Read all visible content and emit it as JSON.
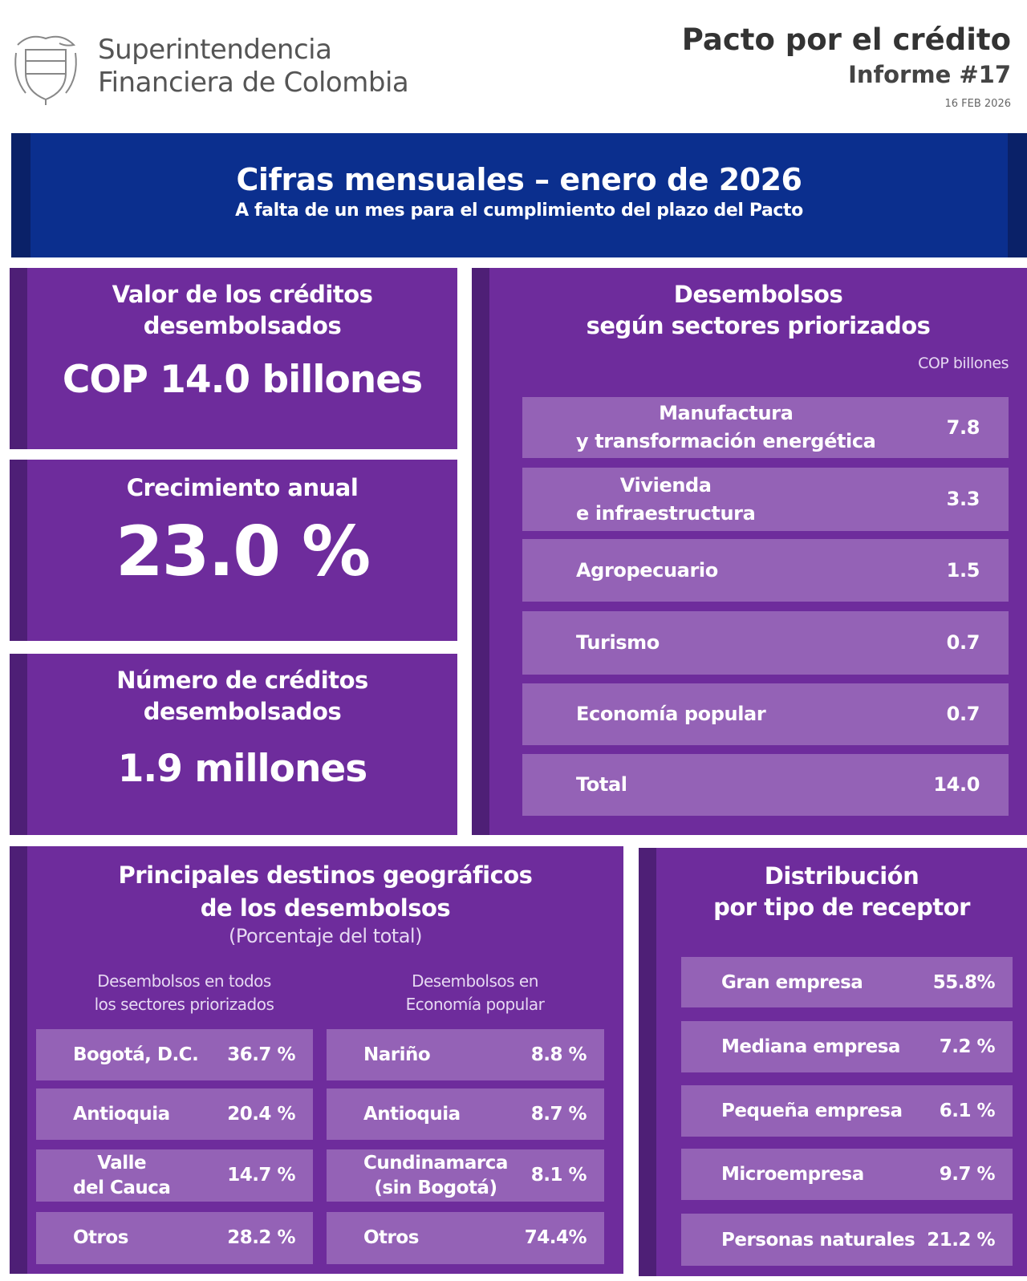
{
  "header": {
    "org_line1": "Superintendencia",
    "org_line2": "Financiera de Colombia",
    "title": "Pacto por el crédito",
    "report": "Informe #17",
    "date": "16 FEB 2026"
  },
  "banner": {
    "title": "Cifras mensuales – enero de 2026",
    "subtitle": "A falta de un mes para el cumplimiento del plazo del Pacto"
  },
  "kpis": [
    {
      "label_1": "Valor de los créditos",
      "label_2": "desembolsados",
      "value": "COP 14.0 billones"
    },
    {
      "label_1": "Crecimiento anual",
      "value": "23.0 %"
    },
    {
      "label_1": "Número de créditos",
      "label_2": "desembolsados",
      "value": "1.9 millones"
    }
  ],
  "sectors": {
    "title_1": "Desembolsos",
    "title_2": "según sectores priorizados",
    "unit": "COP billones",
    "rows": [
      {
        "l1": "Manufactura",
        "l2": "y transformación energética",
        "v": "7.8"
      },
      {
        "l1": "Vivienda",
        "l2": "e infraestructura",
        "v": "3.3"
      },
      {
        "l1": "Agropecuario",
        "v": "1.5"
      },
      {
        "l1": "Turismo",
        "v": "0.7"
      },
      {
        "l1": "Economía popular",
        "v": "0.7"
      },
      {
        "l1": "Total",
        "v": "14.0"
      }
    ]
  },
  "geo": {
    "title_1": "Principales destinos geográficos",
    "title_2": "de los desembolsos",
    "note": "(Porcentaje del total)",
    "left": {
      "h1": "Desembolsos en todos",
      "h2": "los sectores priorizados",
      "rows": [
        {
          "l1": "Bogotá, D.C.",
          "v": "36.7 %"
        },
        {
          "l1": "Antioquia",
          "v": "20.4 %"
        },
        {
          "l1": "Valle",
          "l2": "del Cauca",
          "v": "14.7 %"
        },
        {
          "l1": "Otros",
          "v": "28.2 %"
        }
      ]
    },
    "right": {
      "h1": "Desembolsos en",
      "h2": "Economía popular",
      "rows": [
        {
          "l1": "Nariño",
          "v": "8.8 %"
        },
        {
          "l1": "Antioquia",
          "v": "8.7 %"
        },
        {
          "l1": "Cundinamarca",
          "l2": "(sin Bogotá)",
          "v": "8.1 %"
        },
        {
          "l1": "Otros",
          "v": "74.4%"
        }
      ]
    }
  },
  "receptor": {
    "title_1": "Distribución",
    "title_2": "por tipo de receptor",
    "rows": [
      {
        "l": "Gran empresa",
        "v": "55.8%"
      },
      {
        "l": "Mediana empresa",
        "v": "7.2 %"
      },
      {
        "l": "Pequeña empresa",
        "v": "6.1 %"
      },
      {
        "l": "Microempresa",
        "v": "9.7 %"
      },
      {
        "l": "Personas naturales",
        "v": "21.2 %"
      }
    ]
  },
  "colors": {
    "banner": "#0b2f8e",
    "purple": "#6e2c9c",
    "purple_dark": "#4e1f76",
    "row": "#9462b6"
  }
}
